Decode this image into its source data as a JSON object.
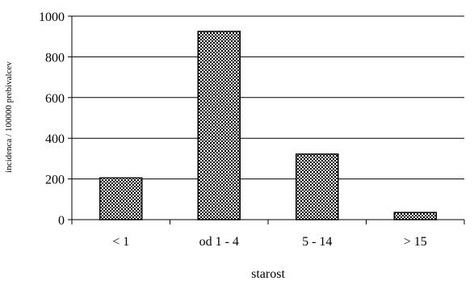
{
  "chart_data": {
    "type": "bar",
    "title": "",
    "xlabel": "starost",
    "ylabel": "incidenca / 100000 prebivalcev",
    "categories": [
      "< 1",
      "od 1 - 4",
      "5 - 14",
      "> 15"
    ],
    "values": [
      205,
      925,
      322,
      35
    ],
    "ylim": [
      0,
      1000
    ],
    "yticks": [
      "0",
      "200",
      "400",
      "600",
      "800",
      "1000"
    ],
    "grid": true,
    "legend": "none",
    "bar_fill": "crosshatch"
  }
}
